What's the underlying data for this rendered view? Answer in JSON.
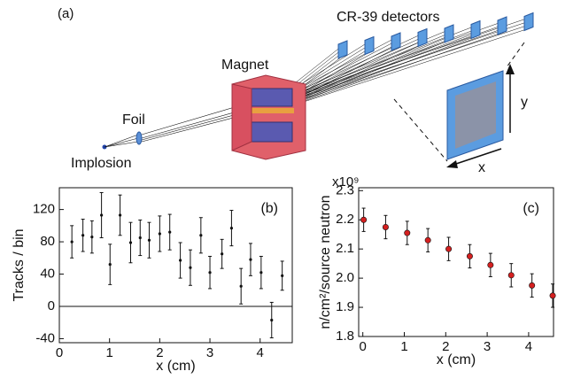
{
  "diagram": {
    "panel": "(a)",
    "detectors": "CR-39 detectors",
    "magnet": "Magnet",
    "foil": "Foil",
    "implosion": "Implosion",
    "y_axis": "y",
    "x_axis": "x"
  },
  "chart_data": [
    {
      "type": "errorbar",
      "panel": "(b)",
      "xlabel": "x (cm)",
      "ylabel": "Tracks / bin",
      "xlim": [
        0,
        4.64
      ],
      "ylim": [
        -45,
        147
      ],
      "xticks": [
        0,
        1,
        2,
        3,
        4
      ],
      "yticks": [
        -40,
        0,
        40,
        80,
        120
      ],
      "zero_line": true,
      "color": "#111111",
      "x": [
        0.25,
        0.47,
        0.65,
        0.84,
        1.01,
        1.21,
        1.42,
        1.61,
        1.79,
        2.0,
        2.2,
        2.41,
        2.61,
        2.82,
        3.0,
        3.24,
        3.43,
        3.62,
        3.81,
        4.02,
        4.23,
        4.44
      ],
      "values": [
        80,
        88,
        86,
        113,
        52,
        113,
        79,
        85,
        82,
        90,
        92,
        57,
        48,
        88,
        42,
        65,
        97,
        25,
        58,
        42,
        -17,
        38
      ],
      "errors": [
        20,
        20,
        20,
        28,
        25,
        25,
        25,
        22,
        22,
        22,
        22,
        22,
        22,
        22,
        20,
        18,
        22,
        22,
        20,
        20,
        22,
        18
      ]
    },
    {
      "type": "errorbar",
      "panel": "(c)",
      "xlabel": "x (cm)",
      "ylabel": "n/cm²/source neutron",
      "multiplier": "x10⁹",
      "xlim": [
        -0.1,
        4.6
      ],
      "ylim": [
        1.8,
        2.31
      ],
      "xticks": [
        0,
        1,
        2,
        3,
        4
      ],
      "yticks": [
        1.8,
        1.9,
        {
          "value": 2.0,
          "label": "2.0"
        },
        2.1,
        2.2,
        2.3
      ],
      "zero_line": false,
      "color": "#d42020",
      "x": [
        0.02,
        0.55,
        1.07,
        1.57,
        2.07,
        2.58,
        3.08,
        3.58,
        4.08,
        4.58
      ],
      "values": [
        2.2,
        2.175,
        2.155,
        2.13,
        2.1,
        2.075,
        2.045,
        2.01,
        1.975,
        1.94
      ],
      "errors": [
        0.04,
        0.04,
        0.04,
        0.04,
        0.04,
        0.04,
        0.04,
        0.04,
        0.04,
        0.04
      ]
    }
  ]
}
